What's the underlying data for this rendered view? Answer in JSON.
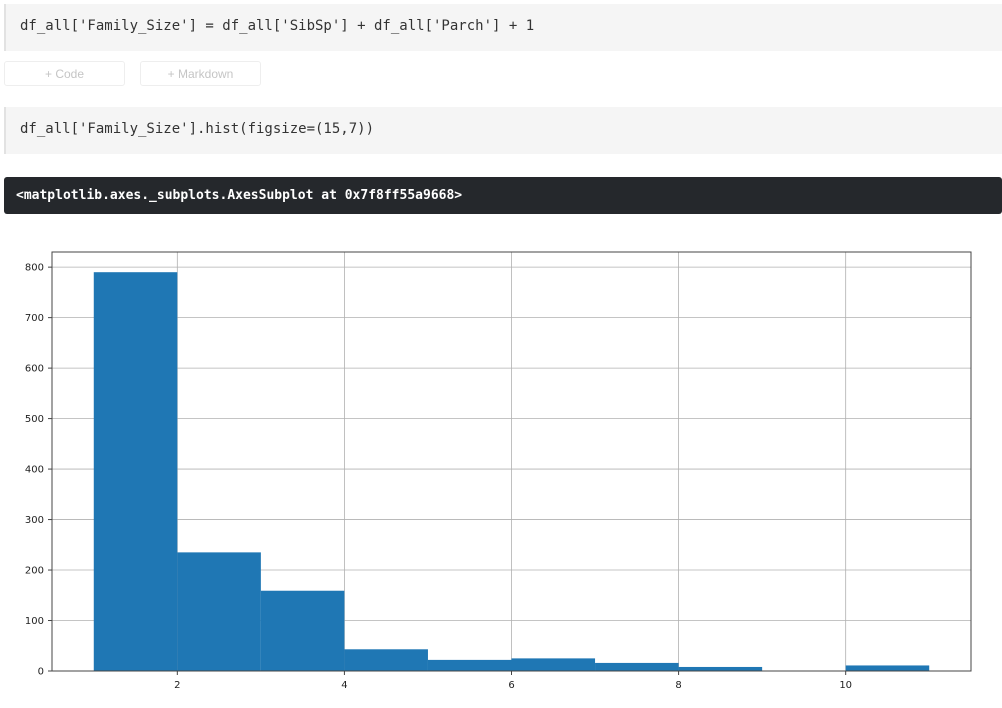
{
  "cells": [
    {
      "code": "df_all['Family_Size'] = df_all['SibSp'] + df_all['Parch'] + 1"
    },
    {
      "code": "df_all['Family_Size'].hist(figsize=(15,7))"
    }
  ],
  "toolbar": {
    "add_code": "+ Code",
    "add_markdown": "+ Markdown"
  },
  "output": {
    "text": "<matplotlib.axes._subplots.AxesSubplot at 0x7f8ff55a9668>"
  },
  "chart_data": {
    "type": "bar",
    "histogram": true,
    "bin_edges": [
      1,
      2,
      3,
      4,
      5,
      6,
      7,
      8,
      9,
      10,
      11
    ],
    "values": [
      790,
      235,
      159,
      43,
      22,
      25,
      16,
      8,
      0,
      11
    ],
    "xlim": [
      0.5,
      11.5
    ],
    "ylim": [
      0,
      830
    ],
    "xticks": [
      "2",
      "4",
      "6",
      "8",
      "10"
    ],
    "yticks": [
      "0",
      "100",
      "200",
      "300",
      "400",
      "500",
      "600",
      "700",
      "800"
    ],
    "grid": true,
    "color": "#1f77b4",
    "title": "",
    "xlabel": "",
    "ylabel": ""
  }
}
